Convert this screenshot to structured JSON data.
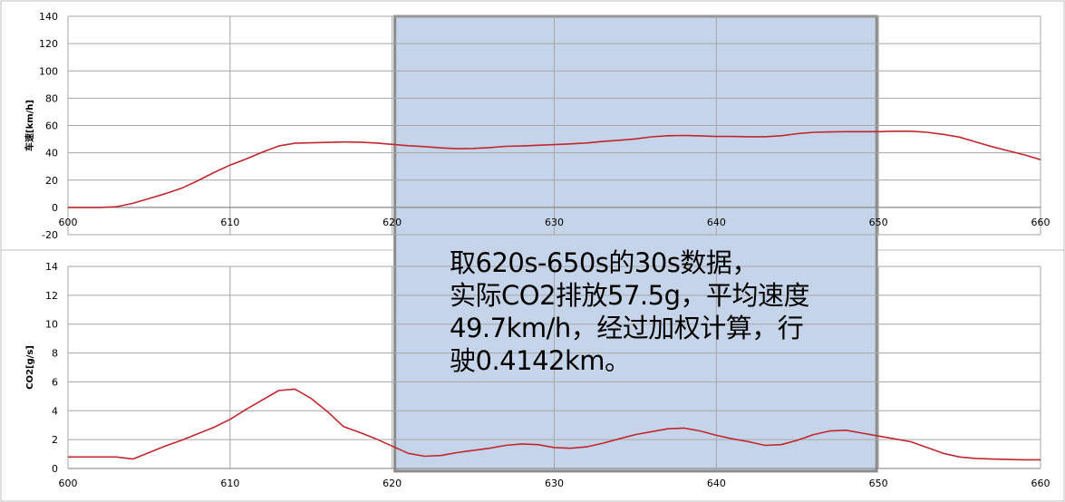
{
  "chart_data": [
    {
      "type": "line",
      "ylabel": "车速[km/h]",
      "xlim": [
        600,
        660
      ],
      "ylim": [
        -20,
        140
      ],
      "xticks": [
        600,
        610,
        620,
        630,
        640,
        650,
        660
      ],
      "yticks": [
        -20,
        0,
        20,
        40,
        60,
        80,
        100,
        120,
        140
      ],
      "grid": true,
      "line_color": "#c0282d",
      "series": [
        {
          "x": [
            600,
            601,
            602,
            603,
            604,
            605,
            606,
            607,
            608,
            609,
            610,
            611,
            612,
            613,
            614,
            615,
            616,
            617,
            618,
            619,
            620,
            621,
            622,
            623,
            624,
            625,
            626,
            627,
            628,
            629,
            630,
            631,
            632,
            633,
            634,
            635,
            636,
            637,
            638,
            639,
            640,
            641,
            642,
            643,
            644,
            645,
            646,
            647,
            648,
            649,
            650,
            651,
            652,
            653,
            654,
            655,
            656,
            657,
            658,
            659,
            660
          ],
          "y": [
            0,
            0,
            0,
            0.5,
            3,
            6.5,
            10,
            14,
            19.5,
            25.5,
            31,
            35.5,
            40.5,
            45,
            47,
            47.3,
            47.6,
            47.9,
            47.8,
            47.2,
            46.2,
            45.2,
            44.5,
            43.6,
            43,
            43.2,
            43.8,
            44.7,
            45,
            45.5,
            46,
            46.5,
            47.2,
            48.3,
            49.2,
            50.2,
            51.7,
            52.5,
            52.7,
            52.4,
            52,
            52,
            51.8,
            51.8,
            52.5,
            54,
            55,
            55.3,
            55.5,
            55.5,
            55.5,
            55.8,
            55.8,
            55,
            53.5,
            51.5,
            48,
            44.5,
            41.5,
            38.5,
            35
          ]
        }
      ]
    },
    {
      "type": "line",
      "ylabel": "CO2[g/s]",
      "xlim": [
        600,
        660
      ],
      "ylim": [
        0,
        14
      ],
      "xticks": [
        600,
        610,
        620,
        630,
        640,
        650,
        660
      ],
      "yticks": [
        0,
        2,
        4,
        6,
        8,
        10,
        12,
        14
      ],
      "grid": true,
      "line_color": "#c0282d",
      "series": [
        {
          "x": [
            600,
            601,
            602,
            603,
            604,
            605,
            606,
            607,
            608,
            609,
            610,
            611,
            612,
            613,
            614,
            615,
            616,
            617,
            618,
            619,
            620,
            621,
            622,
            623,
            624,
            625,
            626,
            627,
            628,
            629,
            630,
            631,
            632,
            633,
            634,
            635,
            636,
            637,
            638,
            639,
            640,
            641,
            642,
            643,
            644,
            645,
            646,
            647,
            648,
            649,
            650,
            651,
            652,
            653,
            654,
            655,
            656,
            657,
            658,
            659,
            660
          ],
          "y": [
            0.8,
            0.8,
            0.8,
            0.8,
            0.65,
            1.1,
            1.55,
            1.95,
            2.4,
            2.85,
            3.4,
            4.1,
            4.75,
            5.4,
            5.5,
            4.85,
            3.95,
            2.9,
            2.5,
            2.05,
            1.55,
            1.05,
            0.85,
            0.9,
            1.1,
            1.25,
            1.4,
            1.6,
            1.7,
            1.65,
            1.45,
            1.4,
            1.5,
            1.75,
            2.05,
            2.35,
            2.55,
            2.75,
            2.8,
            2.6,
            2.3,
            2.05,
            1.85,
            1.6,
            1.65,
            1.95,
            2.35,
            2.6,
            2.65,
            2.45,
            2.25,
            2.05,
            1.85,
            1.45,
            1.05,
            0.8,
            0.7,
            0.65,
            0.62,
            0.6,
            0.6
          ]
        }
      ]
    }
  ],
  "highlight": {
    "x_range": [
      620,
      650
    ],
    "fill": "#c5d4e9",
    "border": "#8c8c8c"
  },
  "annotation": {
    "lines": [
      "取620s-650s的30s数据，",
      "实际CO2排放57.5g，平均速度",
      "49.7km/h，经过加权计算，行",
      "驶0.4142km。"
    ]
  }
}
